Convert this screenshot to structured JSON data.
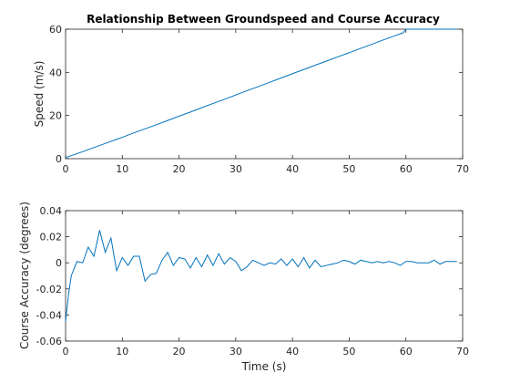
{
  "chart_data": [
    {
      "type": "line",
      "title": "Relationship Between Groundspeed and Course Accuracy",
      "xlabel": "",
      "ylabel": "Speed (m/s)",
      "xlim": [
        0,
        70
      ],
      "ylim": [
        0,
        60
      ],
      "xticks": [
        "0",
        "10",
        "20",
        "30",
        "40",
        "50",
        "60",
        "70"
      ],
      "yticks": [
        "0",
        "20",
        "40",
        "60"
      ],
      "grid": false,
      "series": [
        {
          "color": "#0072bd",
          "x": [
            0,
            2,
            4,
            6,
            8,
            10,
            12,
            14,
            16,
            18,
            20,
            22,
            24,
            26,
            28,
            30,
            32,
            34,
            36,
            38,
            40,
            42,
            44,
            46,
            48,
            50,
            52,
            54,
            56,
            58,
            59.5,
            60,
            62,
            64,
            66,
            68,
            69
          ],
          "y": [
            0.5,
            2.3,
            4.2,
            6.1,
            8.0,
            9.9,
            11.9,
            13.8,
            15.7,
            17.7,
            19.7,
            21.6,
            23.6,
            25.6,
            27.5,
            29.5,
            31.5,
            33.4,
            35.4,
            37.4,
            39.4,
            41.3,
            43.3,
            45.2,
            47.2,
            49.1,
            51.1,
            53.0,
            55.0,
            56.9,
            58.3,
            60,
            60,
            60,
            60,
            60,
            60
          ]
        }
      ]
    },
    {
      "type": "line",
      "title": "",
      "xlabel": "Time (s)",
      "ylabel": "Course Accuracy (degrees)",
      "xlim": [
        0,
        70
      ],
      "ylim": [
        -0.06,
        0.04
      ],
      "xticks": [
        "0",
        "10",
        "20",
        "30",
        "40",
        "50",
        "60",
        "70"
      ],
      "yticks": [
        "-0.06",
        "-0.04",
        "-0.02",
        "0",
        "0.02",
        "0.04"
      ],
      "grid": false,
      "series": [
        {
          "color": "#0072bd",
          "x": [
            0,
            0.5,
            1,
            2,
            3,
            4,
            5,
            6,
            7,
            8,
            9,
            10,
            11,
            12,
            13,
            14,
            15,
            16,
            17,
            18,
            19,
            20,
            21,
            22,
            23,
            24,
            25,
            26,
            27,
            28,
            29,
            30,
            31,
            32,
            33,
            34,
            35,
            36,
            37,
            38,
            39,
            40,
            41,
            42,
            43,
            44,
            45,
            46,
            47,
            48,
            49,
            50,
            51,
            52,
            53,
            54,
            55,
            56,
            57,
            58,
            59,
            60,
            61,
            62,
            63,
            64,
            65,
            66,
            67,
            68,
            69
          ],
          "y": [
            -0.045,
            -0.025,
            -0.01,
            0.001,
            0.0,
            0.012,
            0.005,
            0.025,
            0.008,
            0.019,
            -0.006,
            0.004,
            -0.002,
            0.005,
            0.005,
            -0.014,
            -0.009,
            -0.008,
            0.002,
            0.008,
            -0.002,
            0.004,
            0.003,
            -0.004,
            0.004,
            -0.003,
            0.006,
            -0.002,
            0.007,
            -0.001,
            0.004,
            0.001,
            -0.006,
            -0.003,
            0.002,
            0.0,
            -0.002,
            0.0,
            -0.001,
            0.003,
            -0.002,
            0.003,
            -0.003,
            0.004,
            -0.004,
            0.002,
            -0.003,
            -0.002,
            -0.001,
            0.0,
            0.002,
            0.001,
            -0.001,
            0.002,
            0.001,
            0.0,
            0.001,
            0.0,
            0.001,
            0.0,
            -0.002,
            0.001,
            0.001,
            0.0,
            0.0,
            0.0,
            0.002,
            -0.001,
            0.001,
            0.001,
            0.001
          ]
        }
      ]
    }
  ]
}
